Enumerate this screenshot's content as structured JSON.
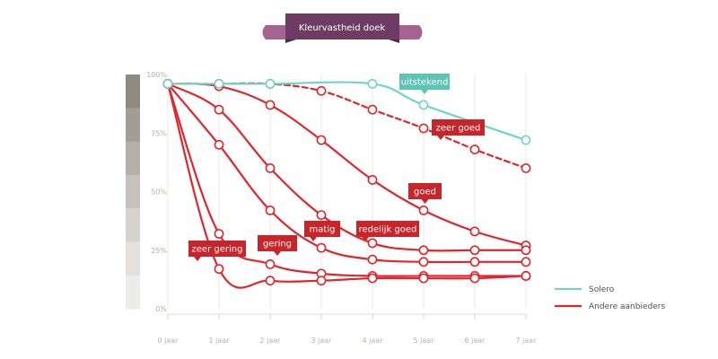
{
  "chart_data": {
    "type": "line",
    "title": "Kleurvastheid doek",
    "categories": [
      "0 jaar",
      "1 jaar",
      "2 jaar",
      "3 jaar",
      "4 jaar",
      "5 jaar",
      "6 jaar",
      "7 jaar"
    ],
    "y_ticks": [
      "100%",
      "75%",
      "50%",
      "25%",
      "0%"
    ],
    "ylim": [
      0,
      100
    ],
    "grid": "vertical",
    "legend_position": "bottom-right",
    "legend": [
      {
        "label": "Solero",
        "color": "#6fd6c5"
      },
      {
        "label": "Andere aanbieders",
        "color": "#e0262c"
      }
    ],
    "series": [
      {
        "name": "Solero",
        "label": "uitstekend",
        "color": "#6fd6c5",
        "dashed": false,
        "values": [
          96,
          96,
          96,
          null,
          96,
          87,
          null,
          72
        ]
      },
      {
        "name": "Andere aanbieders",
        "label": "zeer goed",
        "color": "#e0262c",
        "dashed": true,
        "values": [
          96,
          96,
          96,
          93,
          85,
          77,
          68,
          60
        ]
      },
      {
        "name": "Andere aanbieders",
        "label": "goed",
        "color": "#e0262c",
        "dashed": false,
        "values": [
          96,
          95,
          87,
          72,
          55,
          42,
          33,
          27
        ]
      },
      {
        "name": "Andere aanbieders",
        "label": "redelijk goed",
        "color": "#e0262c",
        "dashed": false,
        "values": [
          96,
          85,
          60,
          40,
          28,
          25,
          25,
          25
        ]
      },
      {
        "name": "Andere aanbieders",
        "label": "matig",
        "color": "#e0262c",
        "dashed": false,
        "values": [
          96,
          70,
          42,
          26,
          21,
          20,
          20,
          20
        ]
      },
      {
        "name": "Andere aanbieders",
        "label": "gering",
        "color": "#e0262c",
        "dashed": false,
        "values": [
          96,
          32,
          19,
          15,
          14,
          14,
          14,
          14
        ]
      },
      {
        "name": "Andere aanbieders",
        "label": "zeer gering",
        "color": "#e0262c",
        "dashed": false,
        "values": [
          96,
          17,
          12,
          12,
          13,
          13,
          13,
          14
        ]
      }
    ],
    "shade_colors": [
      "#8f8a82",
      "#a29d96",
      "#b4afa9",
      "#c6c1bc",
      "#d6d2ce",
      "#e3e0dd",
      "#eeecea"
    ]
  }
}
